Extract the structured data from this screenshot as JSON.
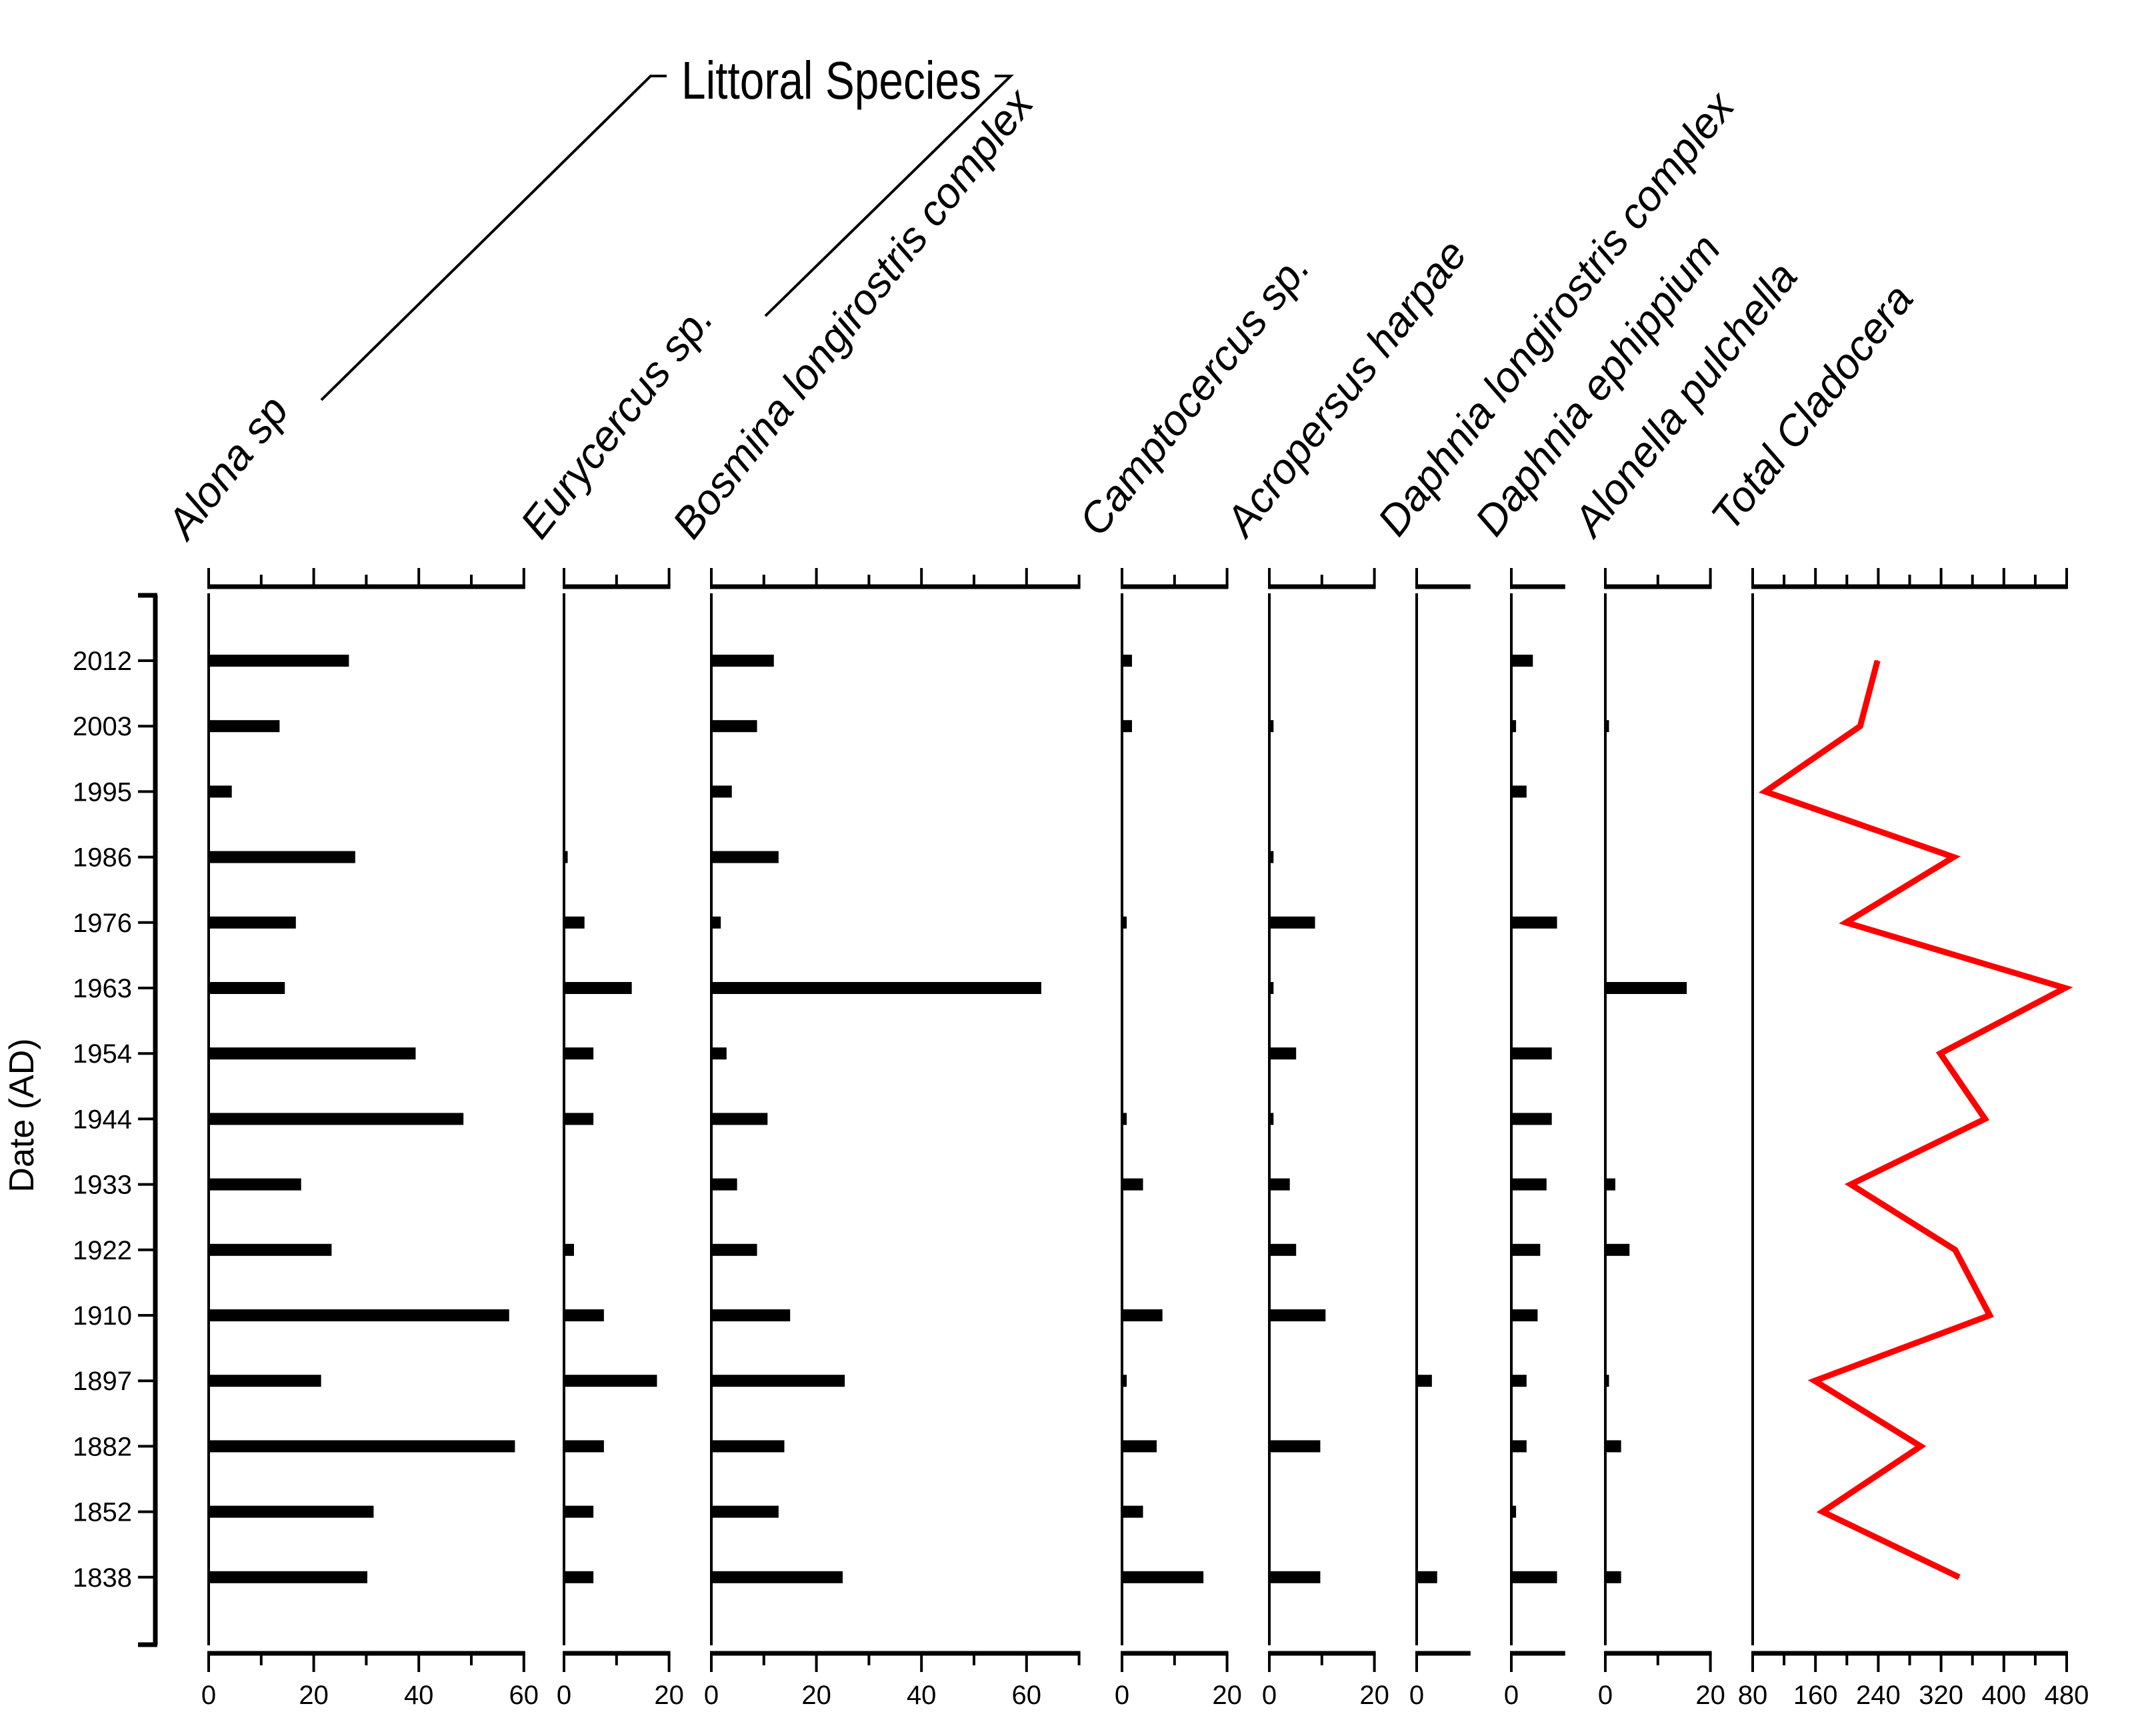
{
  "chart_data": {
    "type": "bar",
    "subtype": "stratigraphic diagram (horizontal bars per depth/date, plus line for total)",
    "group_label": "Littoral Species",
    "group_members": [
      "Alona sp",
      "Eurycercus sp."
    ],
    "ylabel": "Date (AD)",
    "categories": [
      "2012",
      "2003",
      "1995",
      "1986",
      "1976",
      "1963",
      "1954",
      "1944",
      "1933",
      "1922",
      "1910",
      "1897",
      "1882",
      "1852",
      "1838"
    ],
    "series": [
      {
        "name": "Alona sp",
        "kind": "bar",
        "xlim": [
          0,
          60
        ],
        "ticks": [
          0,
          20,
          40,
          60
        ],
        "minor_step": 10,
        "values": [
          26.7,
          13.5,
          4.4,
          27.9,
          16.6,
          14.5,
          39.4,
          48.5,
          17.6,
          23.4,
          57.2,
          21.4,
          58.3,
          31.4,
          30.2
        ]
      },
      {
        "name": "Eurycercus sp.",
        "kind": "bar",
        "xlim": [
          0,
          20
        ],
        "ticks": [
          0,
          20
        ],
        "minor_step": 10,
        "values": [
          0,
          0,
          0,
          0.7,
          3.9,
          12.9,
          5.6,
          5.6,
          0,
          1.9,
          7.6,
          17.7,
          7.6,
          5.6,
          5.6
        ]
      },
      {
        "name": "Bosmina longirostris complex",
        "kind": "bar",
        "xlim": [
          0,
          70
        ],
        "ticks": [
          0,
          20,
          40,
          60
        ],
        "minor_step": 10,
        "values": [
          11.9,
          8.7,
          3.9,
          12.8,
          1.8,
          62.8,
          2.9,
          10.7,
          4.9,
          8.7,
          15.0,
          25.4,
          13.9,
          12.8,
          25.0
        ]
      },
      {
        "name": "Camptocercus sp.",
        "kind": "bar",
        "xlim": [
          0,
          20
        ],
        "ticks": [
          0,
          20
        ],
        "minor_step": 10,
        "values": [
          1.9,
          1.9,
          0,
          0,
          0.9,
          0,
          0,
          0.9,
          4.0,
          0,
          7.7,
          0.9,
          6.6,
          4.0,
          15.5
        ]
      },
      {
        "name": "Acropersus harpae",
        "kind": "bar",
        "xlim": [
          0,
          20
        ],
        "ticks": [
          0,
          20
        ],
        "minor_step": 10,
        "values": [
          0,
          0.8,
          0,
          0.8,
          8.7,
          0.8,
          5.1,
          0.8,
          3.9,
          5.1,
          10.7,
          0,
          9.7,
          0,
          9.7
        ]
      },
      {
        "name": "Daphnia longirostris complex",
        "kind": "bar",
        "xlim": [
          0,
          10
        ],
        "ticks": [
          0
        ],
        "minor_step": 0,
        "values": [
          0,
          0,
          0,
          0,
          0,
          0,
          0,
          0,
          0,
          0,
          0,
          2.9,
          0,
          0,
          3.9
        ]
      },
      {
        "name": "Daphnia ephippium",
        "kind": "bar",
        "xlim": [
          0,
          10
        ],
        "ticks": [
          0
        ],
        "minor_step": 0,
        "values": [
          4.1,
          0.9,
          2.9,
          0,
          8.7,
          0,
          7.7,
          7.7,
          6.7,
          5.5,
          5.0,
          2.9,
          2.9,
          0.9,
          8.7
        ]
      },
      {
        "name": "Alonella pulchella",
        "kind": "bar",
        "xlim": [
          0,
          20
        ],
        "ticks": [
          0,
          20
        ],
        "minor_step": 10,
        "values": [
          0,
          0.7,
          0,
          0,
          0,
          15.5,
          0,
          0,
          1.9,
          4.6,
          0,
          0.7,
          3.0,
          0,
          3.0
        ]
      },
      {
        "name": "Total Cladocera",
        "kind": "line",
        "color": "#ff0000",
        "xlim": [
          80,
          480
        ],
        "ticks": [
          80,
          160,
          240,
          320,
          400,
          480
        ],
        "minor_step": 40,
        "values": [
          239,
          217,
          96,
          336,
          199,
          478,
          319,
          376,
          205,
          338,
          382,
          159,
          294,
          169,
          343
        ]
      }
    ],
    "grid": false,
    "legend": "none"
  }
}
